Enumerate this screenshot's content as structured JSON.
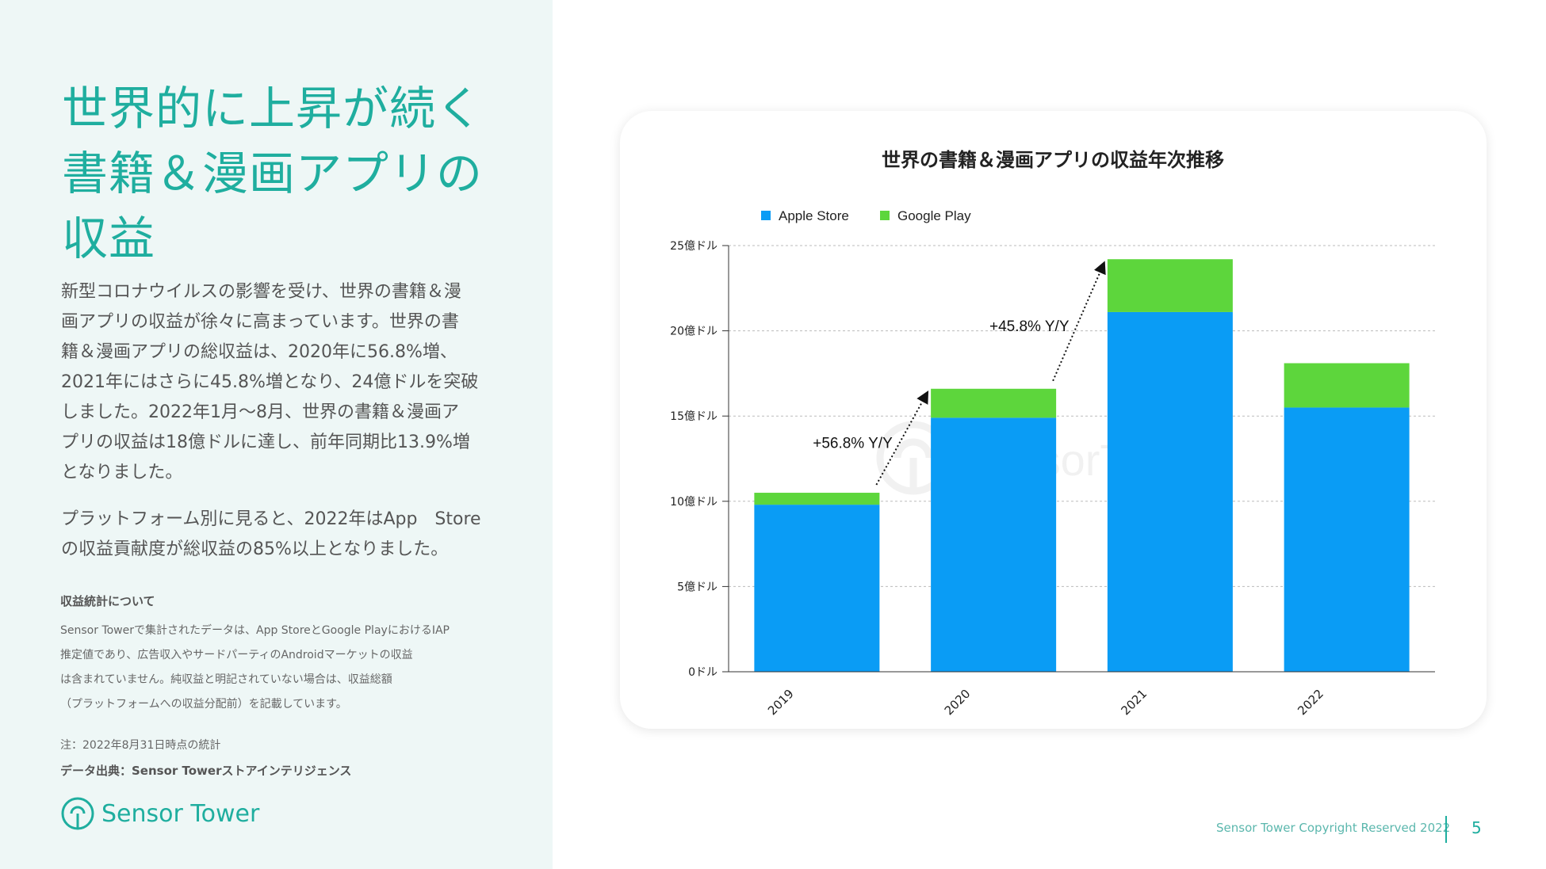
{
  "headline": [
    "世界的に上昇が続く",
    "書籍＆漫画アプリの",
    "収益"
  ],
  "paragraph1": [
    "新型コロナウイルスの影響を受け、世界の書籍＆漫",
    "画アプリの収益が徐々に高まっています。世界の書",
    "籍＆漫画アプリの総収益は、2020年に56.8%増、",
    "2021年にはさらに45.8%増となり、24億ドルを突破",
    "しました。2022年1月〜8月、世界の書籍＆漫画ア",
    "プリの収益は18億ドルに達し、前年同期比13.9%増",
    "となりました。"
  ],
  "paragraph2": [
    "プラットフォーム別に見ると、2022年はApp　Store",
    "の収益貢献度が総収益の85%以上となりました。"
  ],
  "notes": {
    "title": "収益統計について",
    "lines": [
      "Sensor Towerで集計されたデータは、App StoreとGoogle PlayにおけるIAP",
      "推定値であり、広告収入やサードパーティのAndroidマーケットの収益",
      "は含まれていません。純収益と明記されていない場合は、収益総額",
      "（プラットフォームへの収益分配前）を記載しています。"
    ],
    "date": "注：2022年8月31日時点の統計",
    "source": "データ出典：Sensor Towerストアインテリジェンス"
  },
  "logo_text": "Sensor Tower",
  "footer": {
    "copyright": "Sensor Tower Copyright Reserved 2022",
    "page": "5"
  },
  "colors": {
    "accent": "#1fae9f",
    "apple": "#0a9cf5",
    "google": "#5dd63c"
  },
  "chart_data": {
    "type": "bar",
    "stacked": true,
    "title": "世界の書籍＆漫画アプリの収益年次推移",
    "categories": [
      "2019",
      "2020",
      "2021",
      "2022"
    ],
    "series": [
      {
        "name": "Apple Store",
        "values": [
          9.8,
          14.9,
          21.1,
          15.5
        ]
      },
      {
        "name": "Google Play",
        "values": [
          0.7,
          1.7,
          3.1,
          2.6
        ]
      }
    ],
    "y_ticks": [
      {
        "value": 0,
        "label": "0ドル"
      },
      {
        "value": 5,
        "label": "5億ドル"
      },
      {
        "value": 10,
        "label": "10億ドル"
      },
      {
        "value": 15,
        "label": "15億ドル"
      },
      {
        "value": 20,
        "label": "20億ドル"
      },
      {
        "value": 25,
        "label": "25億ドル"
      }
    ],
    "ylim": [
      0,
      25
    ],
    "grid": true,
    "legend_position": "top-left",
    "annotations": [
      {
        "text": "+56.8% Y/Y",
        "from": "2019",
        "to": "2020"
      },
      {
        "text": "+45.8% Y/Y",
        "from": "2020",
        "to": "2021"
      }
    ],
    "watermark": "SensorTower"
  }
}
